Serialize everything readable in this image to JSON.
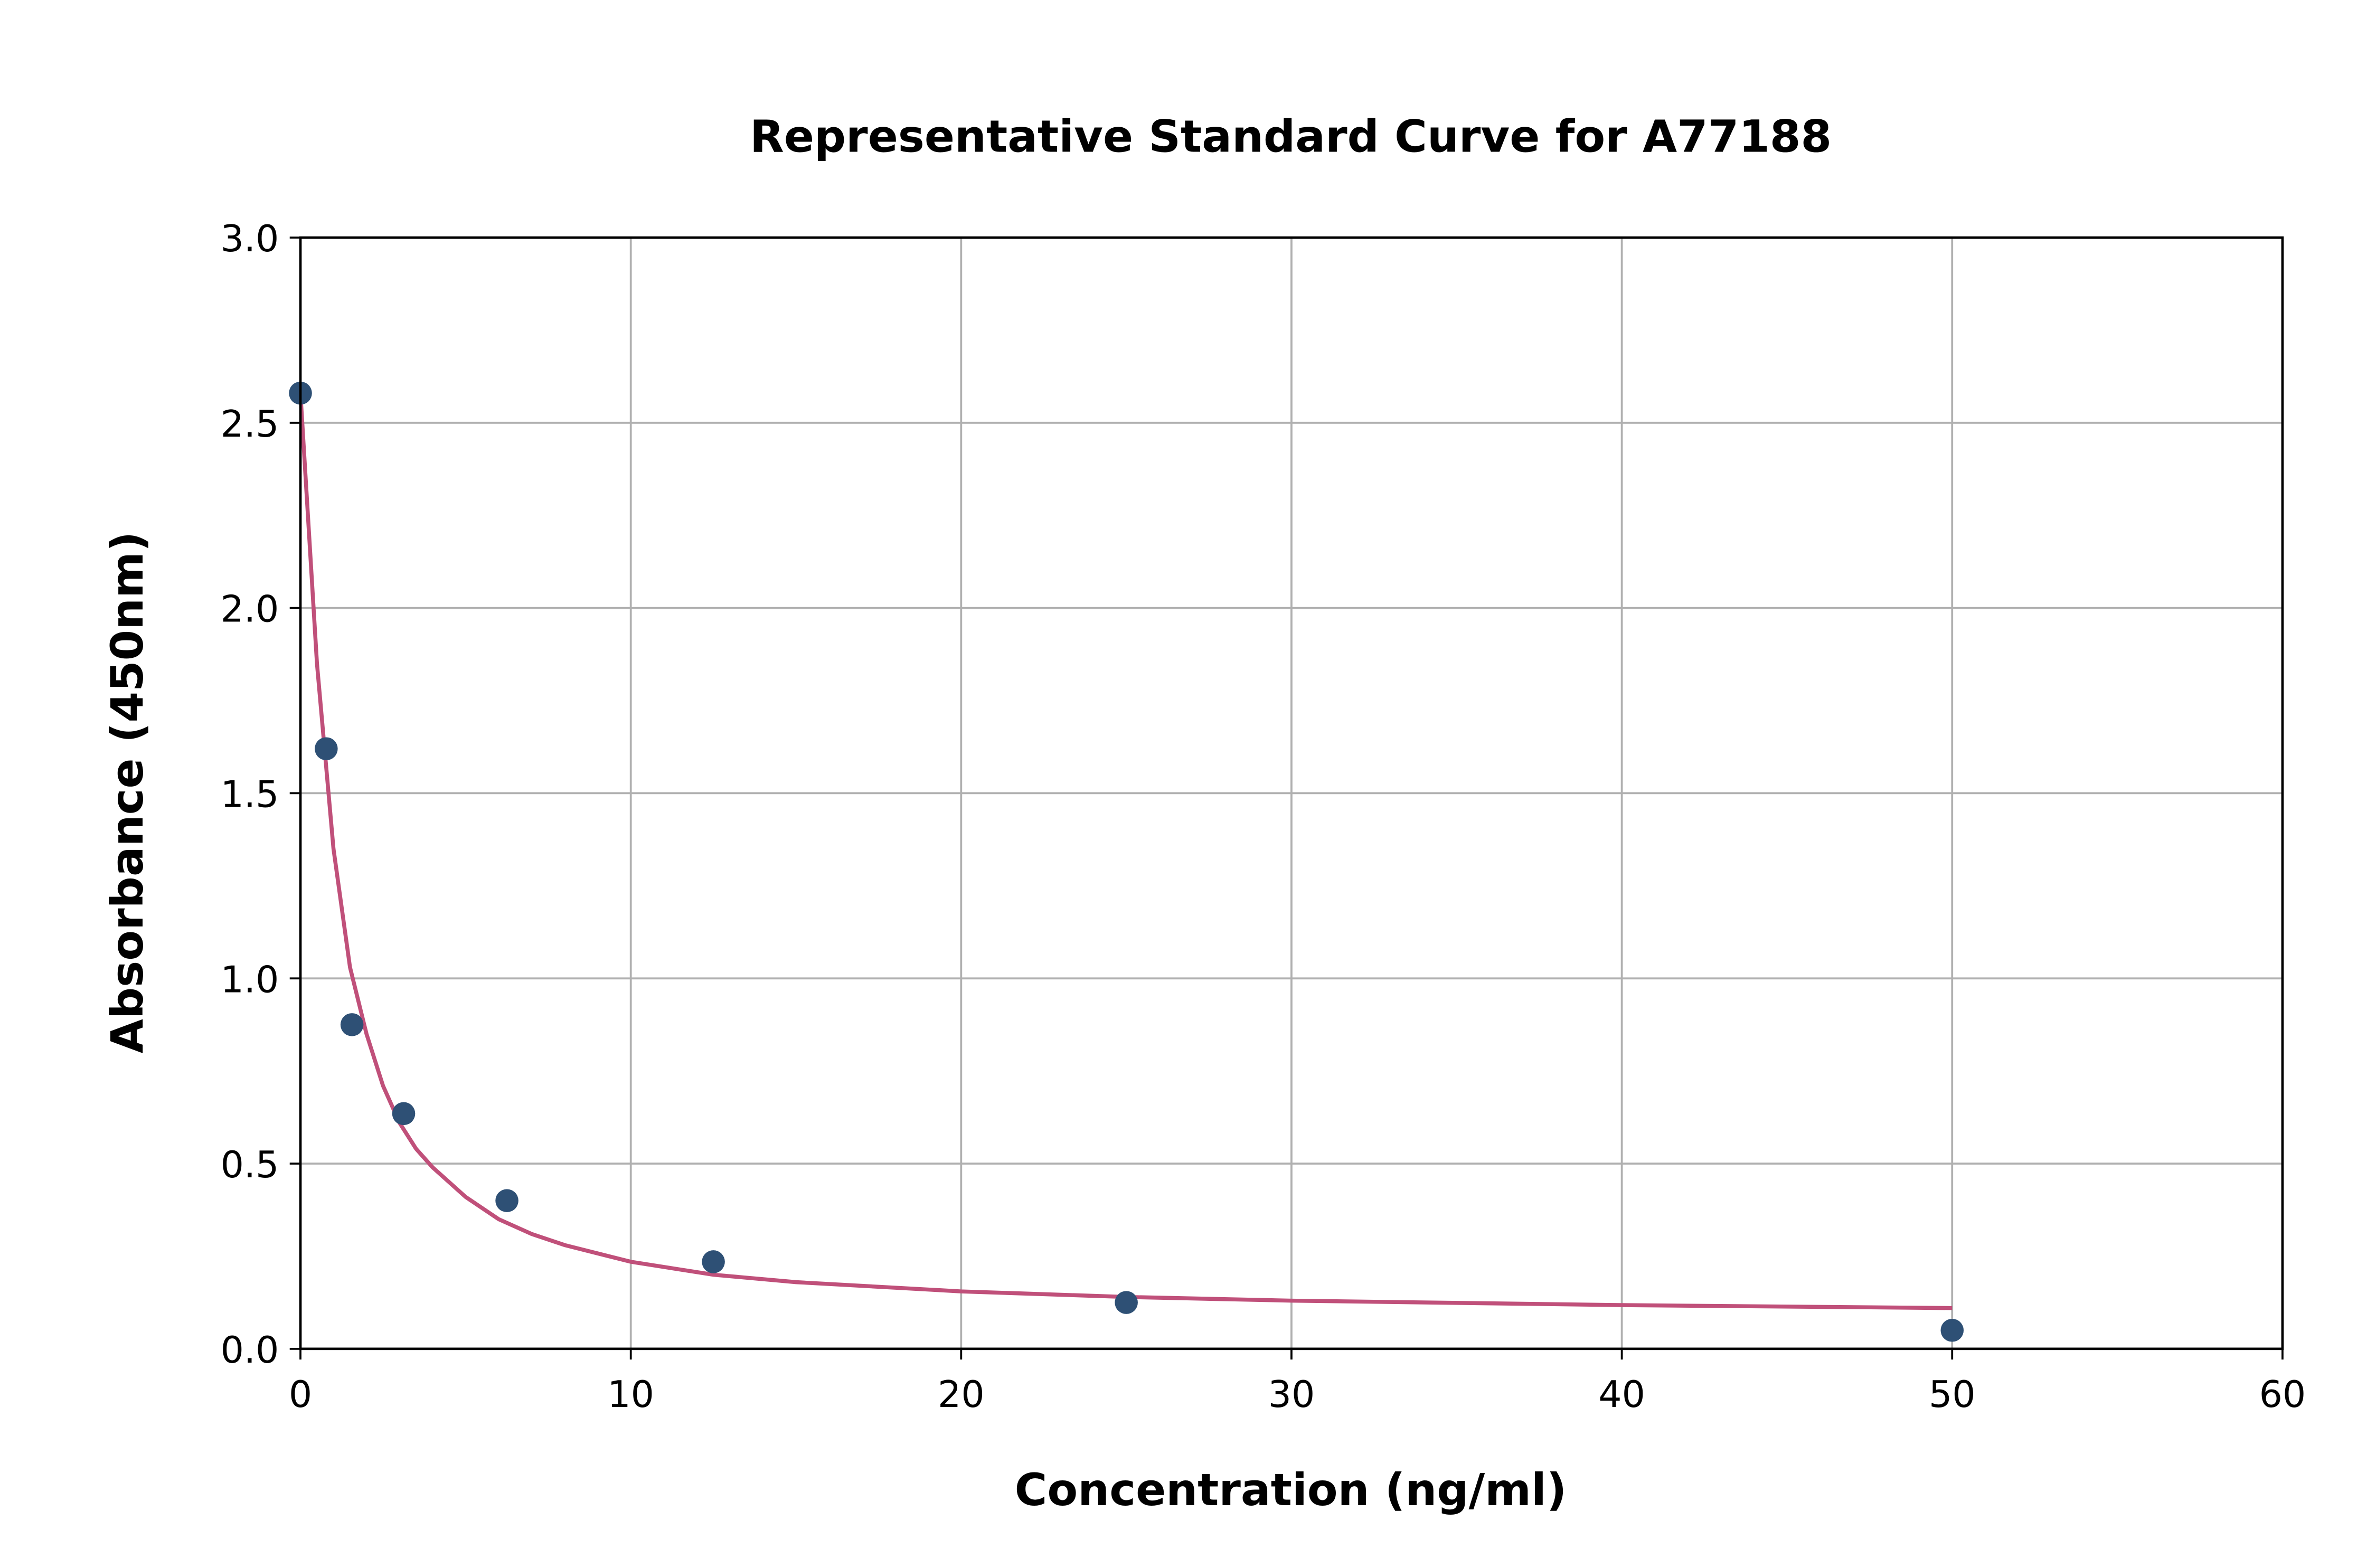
{
  "chart_data": {
    "type": "scatter",
    "title": "Representative Standard Curve for A77188",
    "xlabel": "Concentration (ng/ml)",
    "ylabel": "Absorbance (450nm)",
    "xlim": [
      0,
      60
    ],
    "ylim": [
      0,
      3.0
    ],
    "xticks": [
      "0",
      "10",
      "20",
      "30",
      "40",
      "50",
      "60"
    ],
    "yticks": [
      "0.0",
      "0.5",
      "1.0",
      "1.5",
      "2.0",
      "2.5",
      "3.0"
    ],
    "grid": true,
    "points": {
      "x": [
        0,
        0.78,
        1.56,
        3.125,
        6.25,
        12.5,
        25,
        50
      ],
      "y": [
        2.58,
        1.62,
        0.875,
        0.635,
        0.4,
        0.235,
        0.125,
        0.05
      ]
    },
    "fit_curve": {
      "x": [
        0,
        0.5,
        1,
        1.5,
        2,
        2.5,
        3,
        3.5,
        4,
        5,
        6,
        7,
        8,
        10,
        12.5,
        15,
        20,
        25,
        30,
        40,
        50
      ],
      "y": [
        2.58,
        1.85,
        1.35,
        1.03,
        0.85,
        0.71,
        0.61,
        0.54,
        0.49,
        0.41,
        0.35,
        0.31,
        0.28,
        0.235,
        0.2,
        0.18,
        0.155,
        0.14,
        0.13,
        0.118,
        0.11
      ]
    },
    "colors": {
      "points": "#2e5075",
      "curve": "#c0507a"
    }
  }
}
